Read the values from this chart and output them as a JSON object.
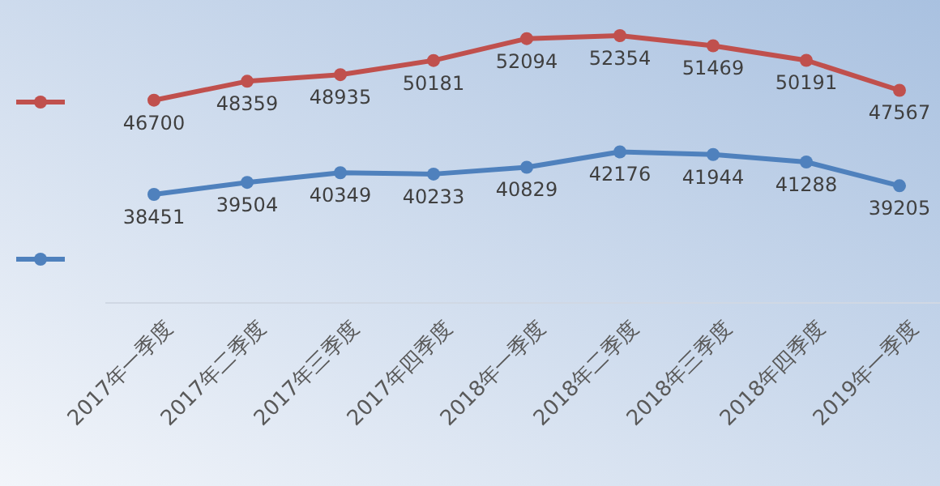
{
  "chart_data": {
    "type": "line",
    "categories": [
      "2017年一季度",
      "2017年二季度",
      "2017年三季度",
      "2017年四季度",
      "2018年一季度",
      "2018年二季度",
      "2018年三季度",
      "2018年四季度",
      "2019年一季度"
    ],
    "series": [
      {
        "color": "#c0504d",
        "values": [
          46700,
          48359,
          48935,
          50181,
          52094,
          52354,
          51469,
          50191,
          47567
        ]
      },
      {
        "color": "#4f81bd",
        "values": [
          38451,
          39504,
          40349,
          40233,
          40829,
          42176,
          41944,
          41288,
          39205
        ]
      }
    ],
    "data_labels": true,
    "marker": "circle"
  }
}
